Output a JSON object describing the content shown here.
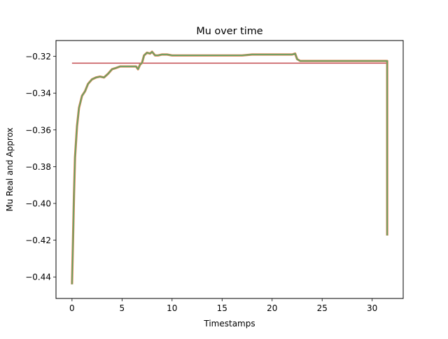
{
  "chart_data": {
    "type": "line",
    "title": "Mu over time",
    "xlabel": "Timestamps",
    "ylabel": "Mu Real and Approx",
    "xlim": [
      -1.6,
      33.1
    ],
    "ylim": [
      -0.4517,
      -0.3114
    ],
    "x_ticks": [
      0,
      5,
      10,
      15,
      20,
      25,
      30
    ],
    "x_tick_labels": [
      "0",
      "5",
      "10",
      "15",
      "20",
      "25",
      "30"
    ],
    "y_ticks": [
      -0.44,
      -0.42,
      -0.4,
      -0.38,
      -0.36,
      -0.34,
      -0.32
    ],
    "y_tick_labels": [
      "−0.44",
      "−0.42",
      "−0.40",
      "−0.38",
      "−0.36",
      "−0.34",
      "−0.32"
    ],
    "grid": false,
    "legend": false,
    "series": [
      {
        "color": "#c44e52",
        "x": [
          0,
          31.5
        ],
        "y": [
          -0.3237,
          -0.3237
        ]
      },
      {
        "color": "#dd8452",
        "stroke_width": 3.2,
        "x": [
          0,
          0.1,
          0.2,
          0.3,
          0.5,
          0.7,
          1.0,
          1.3,
          1.6,
          2.0,
          2.4,
          2.8,
          3.2,
          3.6,
          4.0,
          4.3,
          4.8,
          5.2,
          5.6,
          6.0,
          6.4,
          6.6,
          6.8,
          7.0,
          7.2,
          7.5,
          7.8,
          8.0,
          8.3,
          8.6,
          9.0,
          9.5,
          10.0,
          11.0,
          12.0,
          13.0,
          14.0,
          15.0,
          16.0,
          17.0,
          18.0,
          19.0,
          20.0,
          21.0,
          22.0,
          22.3,
          22.5,
          22.8,
          23.0,
          24.0,
          25.0,
          26.0,
          27.0,
          28.0,
          29.0,
          30.0,
          31.0,
          31.5,
          31.5
        ],
        "y": [
          -0.444,
          -0.42,
          -0.395,
          -0.375,
          -0.358,
          -0.348,
          -0.3415,
          -0.339,
          -0.335,
          -0.3325,
          -0.3315,
          -0.331,
          -0.3315,
          -0.3295,
          -0.327,
          -0.3265,
          -0.3255,
          -0.3255,
          -0.3255,
          -0.3255,
          -0.3255,
          -0.327,
          -0.3245,
          -0.3235,
          -0.3195,
          -0.318,
          -0.3185,
          -0.3175,
          -0.3195,
          -0.3195,
          -0.319,
          -0.319,
          -0.3195,
          -0.3195,
          -0.3195,
          -0.3195,
          -0.3195,
          -0.3195,
          -0.3195,
          -0.3195,
          -0.319,
          -0.319,
          -0.319,
          -0.319,
          -0.319,
          -0.3185,
          -0.3215,
          -0.3225,
          -0.3225,
          -0.3225,
          -0.3225,
          -0.3225,
          -0.3225,
          -0.3225,
          -0.3225,
          -0.3225,
          -0.3225,
          -0.3225,
          -0.4175
        ]
      },
      {
        "color": "#55a868",
        "x": [
          0,
          0.1,
          0.2,
          0.3,
          0.5,
          0.7,
          1.0,
          1.3,
          1.6,
          2.0,
          2.4,
          2.8,
          3.2,
          3.6,
          4.0,
          4.3,
          4.8,
          5.2,
          5.6,
          6.0,
          6.4,
          6.6,
          6.8,
          7.0,
          7.2,
          7.5,
          7.8,
          8.0,
          8.3,
          8.6,
          9.0,
          9.5,
          10.0,
          11.0,
          12.0,
          13.0,
          14.0,
          15.0,
          16.0,
          17.0,
          18.0,
          19.0,
          20.0,
          21.0,
          22.0,
          22.3,
          22.5,
          22.8,
          23.0,
          24.0,
          25.0,
          26.0,
          27.0,
          28.0,
          29.0,
          30.0,
          31.0,
          31.5,
          31.5
        ],
        "y": [
          -0.444,
          -0.42,
          -0.395,
          -0.375,
          -0.358,
          -0.348,
          -0.3415,
          -0.339,
          -0.335,
          -0.3325,
          -0.3315,
          -0.331,
          -0.3315,
          -0.3295,
          -0.327,
          -0.3265,
          -0.3255,
          -0.3255,
          -0.3255,
          -0.3255,
          -0.3255,
          -0.327,
          -0.3245,
          -0.3235,
          -0.3195,
          -0.318,
          -0.3185,
          -0.3175,
          -0.3195,
          -0.3195,
          -0.319,
          -0.319,
          -0.3195,
          -0.3195,
          -0.3195,
          -0.3195,
          -0.3195,
          -0.3195,
          -0.3195,
          -0.3195,
          -0.319,
          -0.319,
          -0.319,
          -0.319,
          -0.319,
          -0.3185,
          -0.3215,
          -0.3225,
          -0.3225,
          -0.3225,
          -0.3225,
          -0.3225,
          -0.3225,
          -0.3225,
          -0.3225,
          -0.3225,
          -0.3225,
          -0.3225,
          -0.4175
        ]
      }
    ]
  }
}
